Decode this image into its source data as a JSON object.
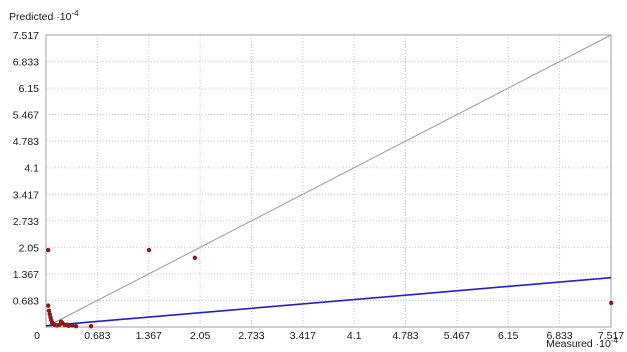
{
  "chart_data": {
    "type": "scatter",
    "title": "",
    "ylabel": "Predicted ·10",
    "ylabel_exponent": "-4",
    "xlabel": "Measured ·10",
    "xlabel_exponent": "-4",
    "xlim": [
      0,
      7.517
    ],
    "ylim": [
      0,
      7.517
    ],
    "x_ticks": [
      "0",
      "0.683",
      "1.367",
      "2.05",
      "2.733",
      "3.417",
      "4.1",
      "4.783",
      "5.467",
      "6.15",
      "6.833",
      "7.517"
    ],
    "y_ticks": [
      "0",
      "0.683",
      "1.367",
      "2.05",
      "2.733",
      "3.417",
      "4.1",
      "4.783",
      "5.467",
      "6.15",
      "6.833",
      "7.517"
    ],
    "grid": true,
    "series": [
      {
        "type": "scatter",
        "color": "#8b1a1a",
        "points": [
          [
            0.03,
            1.98
          ],
          [
            0.03,
            0.55
          ],
          [
            0.04,
            0.42
          ],
          [
            0.05,
            0.33
          ],
          [
            0.06,
            0.25
          ],
          [
            0.07,
            0.18
          ],
          [
            0.08,
            0.12
          ],
          [
            0.1,
            0.08
          ],
          [
            0.12,
            0.05
          ],
          [
            0.15,
            0.04
          ],
          [
            0.18,
            0.06
          ],
          [
            0.2,
            0.14
          ],
          [
            0.22,
            0.1
          ],
          [
            0.25,
            0.05
          ],
          [
            0.28,
            0.06
          ],
          [
            0.3,
            0.03
          ],
          [
            0.35,
            0.04
          ],
          [
            0.4,
            0.02
          ],
          [
            0.6,
            0.02
          ],
          [
            1.37,
            1.98
          ],
          [
            1.98,
            1.78
          ],
          [
            7.52,
            0.62
          ]
        ]
      },
      {
        "type": "line",
        "color": "#9a9a9a",
        "points": [
          [
            0,
            0
          ],
          [
            7.517,
            7.517
          ]
        ]
      },
      {
        "type": "line",
        "color": "#1f1fd6",
        "points": [
          [
            0,
            0.03
          ],
          [
            7.517,
            1.27
          ]
        ]
      }
    ]
  }
}
